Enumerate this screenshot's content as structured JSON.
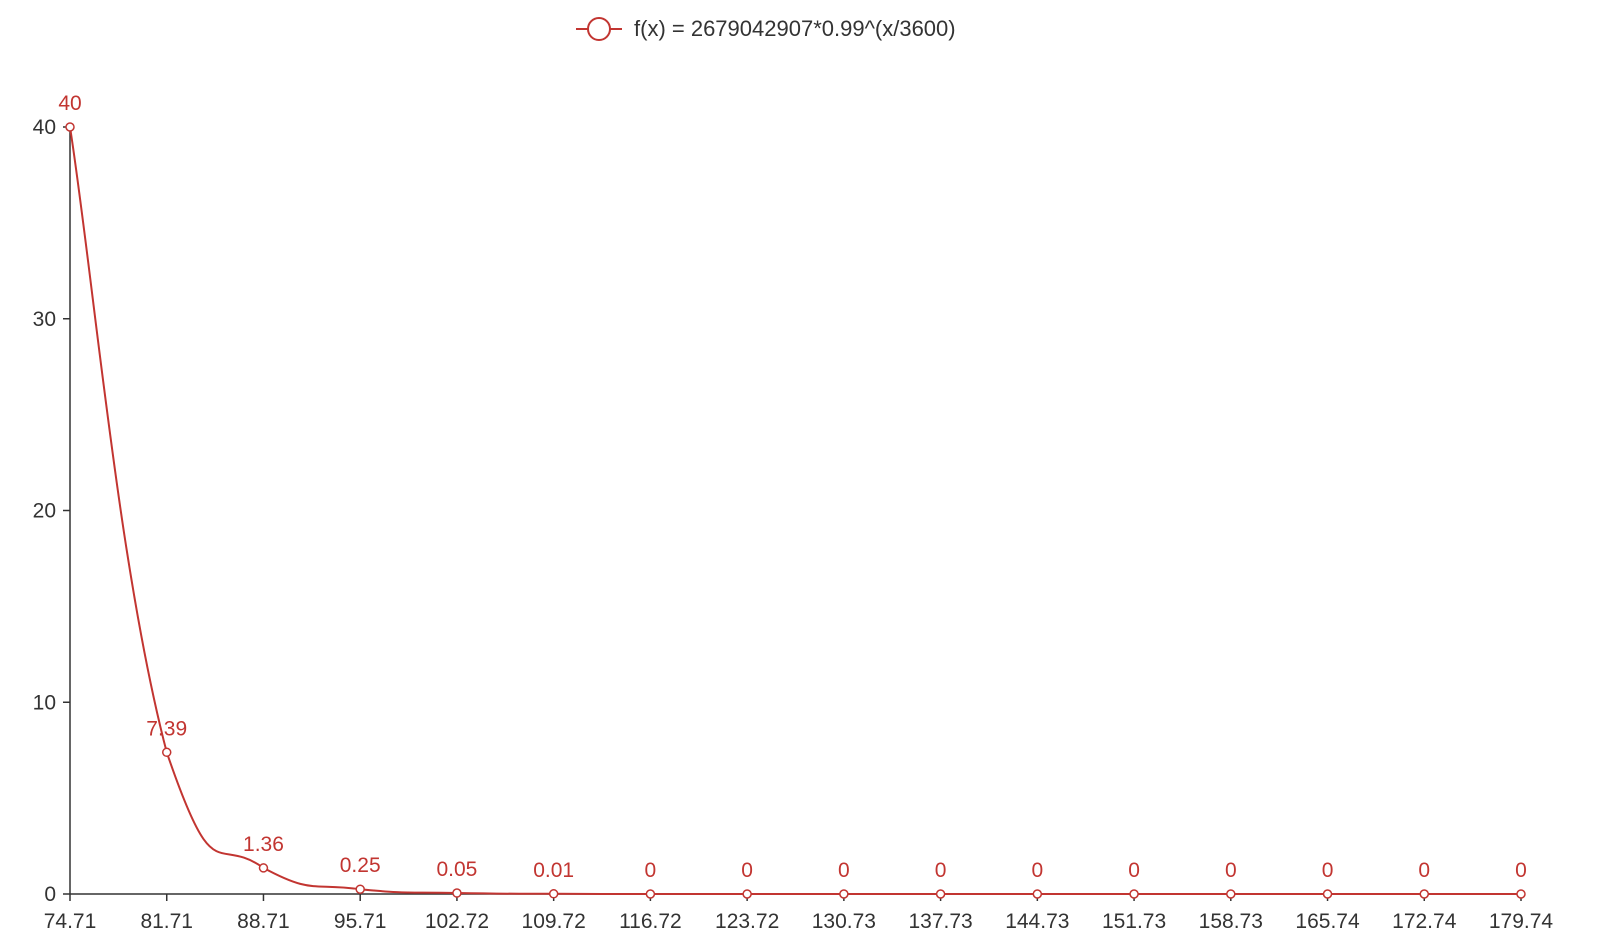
{
  "chart_data": {
    "type": "line",
    "series": [
      {
        "name": "f(x) = 2679042907*0.99^(x/3600)",
        "color": "#c23531",
        "x": [
          "74.71",
          "81.71",
          "88.71",
          "95.71",
          "102.72",
          "109.72",
          "116.72",
          "123.72",
          "130.73",
          "137.73",
          "144.73",
          "151.73",
          "158.73",
          "165.74",
          "172.74",
          "179.74"
        ],
        "values": [
          40,
          7.39,
          1.36,
          0.25,
          0.05,
          0.01,
          0,
          0,
          0,
          0,
          0,
          0,
          0,
          0,
          0,
          0
        ],
        "labels": [
          "40",
          "7.39",
          "1.36",
          "0.25",
          "0.05",
          "0.01",
          "0",
          "0",
          "0",
          "0",
          "0",
          "0",
          "0",
          "0",
          "0",
          "0"
        ]
      }
    ],
    "categories": [
      "74.71",
      "81.71",
      "88.71",
      "95.71",
      "102.72",
      "109.72",
      "116.72",
      "123.72",
      "130.73",
      "137.73",
      "144.73",
      "151.73",
      "158.73",
      "165.74",
      "172.74",
      "179.74"
    ],
    "yticks": [
      0,
      10,
      20,
      30,
      40
    ],
    "ylim": [
      0,
      40
    ],
    "smooth": true,
    "grid": false,
    "legend_position": "top-center",
    "marker": "hollow-circle"
  }
}
